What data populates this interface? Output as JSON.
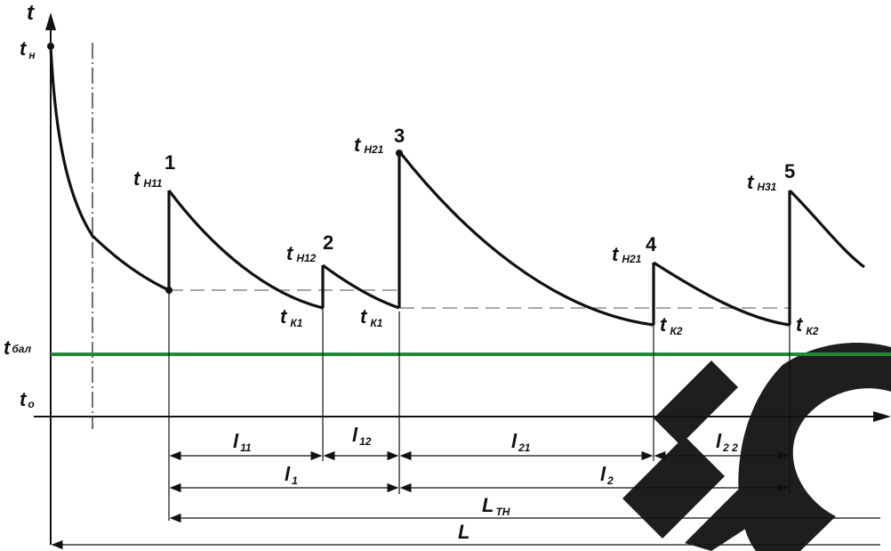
{
  "axes": {
    "y_label": "t",
    "x_arrow": true
  },
  "labels": {
    "t_n": {
      "main": "t",
      "sub": "н"
    },
    "t_bal": {
      "main": "t",
      "sub": "бал"
    },
    "t_o": {
      "main": "t",
      "sub": "о"
    },
    "t_n11": {
      "main": "t",
      "sub": "Н11"
    },
    "t_n12": {
      "main": "t",
      "sub": "Н12"
    },
    "t_n21_top": {
      "main": "t",
      "sub": "Н21"
    },
    "t_n21_4": {
      "main": "t",
      "sub": "Н21"
    },
    "t_n31": {
      "main": "t",
      "sub": "Н31"
    },
    "t_k1_a": {
      "main": "t",
      "sub": "К1"
    },
    "t_k1_b": {
      "main": "t",
      "sub": "К1"
    },
    "t_k2_a": {
      "main": "t",
      "sub": "К2"
    },
    "t_k2_b": {
      "main": "t",
      "sub": "К2"
    }
  },
  "points": [
    "1",
    "2",
    "3",
    "4",
    "5"
  ],
  "dimensions": {
    "l11": {
      "main": "l",
      "sub": "11"
    },
    "l12": {
      "main": "l",
      "sub": "12"
    },
    "l21": {
      "main": "l",
      "sub": "21"
    },
    "l22": {
      "main": "l",
      "sub": "2 2"
    },
    "l1": {
      "main": "l",
      "sub": "1"
    },
    "l2": {
      "main": "l",
      "sub": "2"
    },
    "LTH": {
      "main": "L",
      "sub": "TH"
    },
    "L": {
      "main": "L",
      "sub": ""
    }
  },
  "colors": {
    "line": "#111111",
    "ambient_line": "#1f8a3a",
    "dashed": "#888888",
    "watermark": "#222222"
  }
}
